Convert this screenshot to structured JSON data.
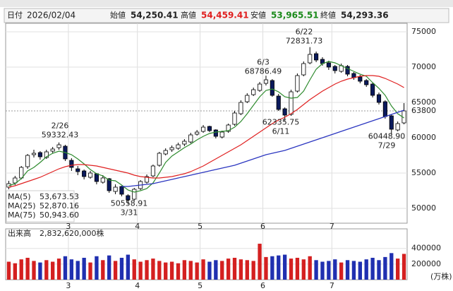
{
  "header": {
    "date_label": "日付",
    "date": "2026/02/04",
    "open_label": "始値",
    "open": "54,250.41",
    "high_label": "高値",
    "high": "54,459.41",
    "low_label": "安値",
    "low": "53,965.51",
    "close_label": "終値",
    "close": "54,293.36"
  },
  "chart_data": [
    {
      "type": "candlestick",
      "up_color": "#ffffff",
      "down_color": "#0b1a5c",
      "edge_color": "#000000",
      "categories": [
        null,
        null,
        null,
        null,
        null,
        null,
        null,
        null,
        null,
        null,
        "3",
        null,
        null,
        null,
        null,
        null,
        null,
        null,
        null,
        null,
        null,
        "4",
        null,
        null,
        null,
        null,
        null,
        null,
        null,
        null,
        null,
        "5",
        null,
        null,
        null,
        null,
        null,
        null,
        null,
        null,
        null,
        "6",
        null,
        null,
        null,
        null,
        null,
        null,
        null,
        null,
        null,
        null,
        "7",
        null,
        null,
        null,
        null,
        null,
        null,
        null,
        null,
        null,
        null,
        null
      ],
      "ohlc": [
        [
          53000,
          53900,
          52700,
          53500
        ],
        [
          53600,
          54600,
          53300,
          54300
        ],
        [
          54300,
          56000,
          54100,
          55800
        ],
        [
          55900,
          57700,
          55600,
          57500
        ],
        [
          57600,
          58300,
          57200,
          57800
        ],
        [
          57900,
          58100,
          56900,
          57300
        ],
        [
          57200,
          58300,
          57000,
          58000
        ],
        [
          58100,
          58700,
          57800,
          58400
        ],
        [
          58600,
          59332.43,
          58300,
          59000
        ],
        [
          58800,
          59000,
          56700,
          57000
        ],
        [
          56800,
          57100,
          55300,
          55800
        ],
        [
          55600,
          56000,
          54700,
          55200
        ],
        [
          55300,
          55500,
          54100,
          54500
        ],
        [
          54400,
          55300,
          54200,
          55000
        ],
        [
          54900,
          55000,
          53400,
          53800
        ],
        [
          53700,
          54700,
          53500,
          54300
        ],
        [
          54200,
          54300,
          52200,
          52500
        ],
        [
          52400,
          53400,
          52000,
          53000
        ],
        [
          53100,
          53200,
          51700,
          52000
        ],
        [
          51800,
          52000,
          50558.91,
          51200
        ],
        [
          51300,
          52900,
          51100,
          52700
        ],
        [
          52800,
          54000,
          52600,
          53800
        ],
        [
          53700,
          54800,
          53500,
          54500
        ],
        [
          54600,
          56200,
          54400,
          56000
        ],
        [
          56100,
          58000,
          55900,
          57800
        ],
        [
          57700,
          58500,
          57500,
          58200
        ],
        [
          58300,
          58900,
          58000,
          58600
        ],
        [
          58500,
          59300,
          58300,
          59000
        ],
        [
          59100,
          59800,
          58800,
          59500
        ],
        [
          59400,
          60700,
          59200,
          60400
        ],
        [
          60500,
          61100,
          60300,
          60800
        ],
        [
          60900,
          61800,
          60700,
          61500
        ],
        [
          61600,
          61700,
          60800,
          61000
        ],
        [
          61100,
          61200,
          59900,
          60200
        ],
        [
          60100,
          61000,
          59900,
          60800
        ],
        [
          60900,
          62000,
          60700,
          61800
        ],
        [
          61900,
          63800,
          61700,
          63500
        ],
        [
          63400,
          65300,
          63200,
          65000
        ],
        [
          65100,
          66300,
          64900,
          66000
        ],
        [
          66100,
          67100,
          65900,
          66800
        ],
        [
          66700,
          67900,
          66500,
          67600
        ],
        [
          67700,
          68786.49,
          67400,
          68200
        ],
        [
          68100,
          68300,
          65800,
          66000
        ],
        [
          65900,
          66200,
          63800,
          64000
        ],
        [
          64100,
          64300,
          62335.75,
          63200
        ],
        [
          63300,
          66800,
          63100,
          66500
        ],
        [
          66600,
          69100,
          66400,
          68800
        ],
        [
          68900,
          70800,
          68700,
          70500
        ],
        [
          70600,
          72831.73,
          70400,
          71800
        ],
        [
          71900,
          72200,
          70700,
          71000
        ],
        [
          71100,
          71400,
          70200,
          70500
        ],
        [
          70600,
          70900,
          69600,
          70000
        ],
        [
          70100,
          70300,
          69100,
          69500
        ],
        [
          69400,
          70500,
          69200,
          70200
        ],
        [
          70100,
          70300,
          68700,
          69000
        ],
        [
          69100,
          69300,
          68200,
          68500
        ],
        [
          68600,
          68900,
          67700,
          68000
        ],
        [
          68100,
          68300,
          67200,
          67500
        ],
        [
          67600,
          67800,
          65700,
          66000
        ],
        [
          66100,
          66400,
          64700,
          65000
        ],
        [
          65100,
          65300,
          62700,
          63000
        ],
        [
          63100,
          63300,
          60448.9,
          61200
        ],
        [
          61100,
          62300,
          60900,
          62000
        ],
        [
          62100,
          64900,
          61900,
          63800
        ]
      ],
      "series": [
        {
          "name": "MA(5)",
          "legend_value": "53,673.53",
          "color": "#2e8b2e",
          "values": [
            53200,
            53500,
            54200,
            55300,
            55800,
            56500,
            57300,
            57800,
            58100,
            57900,
            57600,
            57000,
            56300,
            55500,
            54900,
            54600,
            54000,
            53900,
            53300,
            52600,
            52300,
            52500,
            52800,
            53600,
            55000,
            56500,
            57400,
            58000,
            58600,
            59100,
            59700,
            60200,
            60600,
            60800,
            60900,
            61000,
            61500,
            62300,
            63400,
            64600,
            65800,
            66700,
            66900,
            66500,
            65800,
            65600,
            65700,
            66600,
            68200,
            69700,
            70500,
            70800,
            70600,
            70200,
            69800,
            69400,
            69000,
            68700,
            67800,
            67000,
            66000,
            64500,
            63400,
            62800
          ]
        },
        {
          "name": "MA(25)",
          "legend_value": "52,870.16",
          "color": "#e02020",
          "values": [
            53000,
            53200,
            53500,
            53800,
            54100,
            54400,
            54800,
            55200,
            55600,
            55900,
            56100,
            56200,
            56200,
            56100,
            56000,
            55800,
            55600,
            55400,
            55200,
            55000,
            54700,
            54500,
            54400,
            54300,
            54300,
            54400,
            54500,
            54700,
            54900,
            55200,
            55600,
            56000,
            56500,
            57000,
            57500,
            58000,
            58500,
            59000,
            59600,
            60200,
            60800,
            61400,
            62000,
            62500,
            62900,
            63400,
            64000,
            64700,
            65400,
            66000,
            66600,
            67100,
            67600,
            68000,
            68300,
            68500,
            68700,
            68800,
            68800,
            68700,
            68400,
            68000,
            67600,
            67100
          ]
        },
        {
          "name": "MA(75)",
          "legend_value": "50,943.60",
          "color": "#2a35c0",
          "values": [
            null,
            null,
            null,
            null,
            null,
            null,
            null,
            null,
            null,
            null,
            null,
            null,
            null,
            null,
            null,
            null,
            null,
            null,
            53100,
            53100,
            53200,
            53300,
            53400,
            53500,
            53700,
            53900,
            54100,
            54300,
            54500,
            54700,
            54900,
            55100,
            55300,
            55500,
            55700,
            55900,
            56100,
            56400,
            56700,
            57000,
            57300,
            57600,
            57800,
            58000,
            58200,
            58500,
            58800,
            59100,
            59400,
            59700,
            60000,
            60300,
            60600,
            60900,
            61200,
            61500,
            61800,
            62100,
            62400,
            62700,
            63000,
            63300,
            63600,
            63900
          ]
        }
      ],
      "last_price": 63800,
      "last_color": "#e02020",
      "annotations": [
        [
          "2/26",
          "59332.43"
        ],
        [
          "50558.91",
          "3/31"
        ],
        [
          "6/3",
          "68786.49"
        ],
        [
          "6/22",
          "72831.73"
        ],
        [
          "62335.75",
          "6/11"
        ],
        [
          "60448.90",
          "7/29"
        ]
      ],
      "ylim": [
        47900,
        76200
      ],
      "yticks": [
        50000,
        55000,
        60000,
        65000,
        70000,
        75000
      ],
      "grid": true
    },
    {
      "type": "volume",
      "title": "出来高",
      "total": "2,832,620,000株",
      "unit": "(万株)",
      "values": [
        230000,
        210000,
        260000,
        280000,
        240000,
        220000,
        250000,
        230000,
        270000,
        300000,
        260000,
        240000,
        280000,
        220000,
        300000,
        250000,
        310000,
        240000,
        280000,
        320000,
        260000,
        230000,
        250000,
        270000,
        240000,
        220000,
        230000,
        210000,
        250000,
        240000,
        220000,
        260000,
        230000,
        250000,
        240000,
        270000,
        280000,
        260000,
        250000,
        240000,
        460000,
        290000,
        300000,
        310000,
        320000,
        270000,
        280000,
        260000,
        300000,
        250000,
        230000,
        240000,
        260000,
        220000,
        250000,
        240000,
        230000,
        260000,
        280000,
        250000,
        290000,
        340000,
        270000,
        330000
      ],
      "up_color": "#d42020",
      "down_color": "#2030b0",
      "ylim": [
        0,
        650000
      ],
      "yticks": [
        200000,
        400000
      ],
      "grid": true
    }
  ]
}
